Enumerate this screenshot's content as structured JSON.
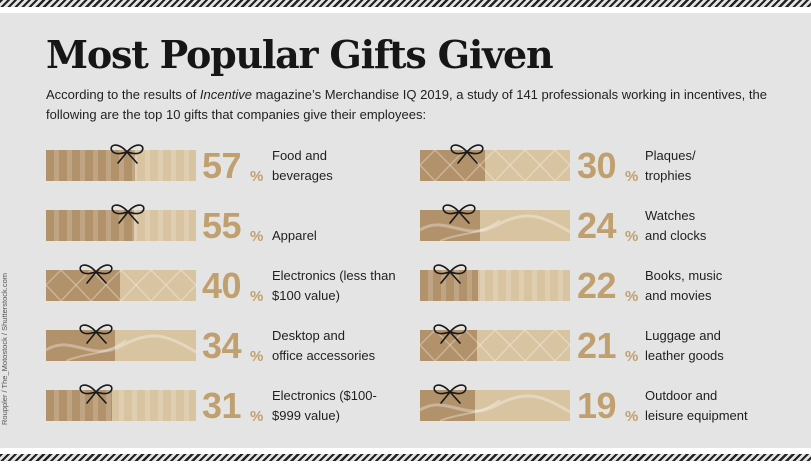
{
  "header": {
    "title": "Most Popular Gifts Given",
    "intro_before": "According to the results of ",
    "intro_italic": "Incentive",
    "intro_after": " magazine’s Merchandise IQ 2019, a study of 141 professionals working in incentives, the following are the top 10 gifts that companies give their employees:"
  },
  "credit": "Rouppler / The_Motostock / Shutterstock.com",
  "colors": {
    "dark": "#b2926a",
    "light": "#d8c4a0",
    "accent": "#c1a06f",
    "panel": "#e4e4e4"
  },
  "chart_data": {
    "type": "table",
    "unit": "%",
    "items": [
      {
        "label": "Food and beverages",
        "value": 57,
        "line1": "Food and",
        "line2": "beverages"
      },
      {
        "label": "Apparel",
        "value": 55,
        "line1": "",
        "line2": "Apparel"
      },
      {
        "label": "Electronics (less than $100 value)",
        "value": 40,
        "line1": "Electronics (less than",
        "line2": "$100 value)"
      },
      {
        "label": "Desktop and office accessories",
        "value": 34,
        "line1": "Desktop and",
        "line2": "office accessories"
      },
      {
        "label": "Electronics ($100-$999 value)",
        "value": 31,
        "line1": "Electronics ($100-",
        "line2": "$999 value)"
      },
      {
        "label": "Plaques/ trophies",
        "value": 30,
        "line1": "Plaques/",
        "line2": "trophies"
      },
      {
        "label": "Watches and clocks",
        "value": 24,
        "line1": "Watches",
        "line2": "and clocks"
      },
      {
        "label": "Books, music and movies",
        "value": 22,
        "line1": "Books, music",
        "line2": "and movies"
      },
      {
        "label": "Luggage and leather goods",
        "value": 21,
        "line1": "Luggage and",
        "line2": "leather goods"
      },
      {
        "label": "Outdoor and leisure equipment",
        "value": 19,
        "line1": "Outdoor and",
        "line2": "leisure equipment"
      }
    ]
  }
}
